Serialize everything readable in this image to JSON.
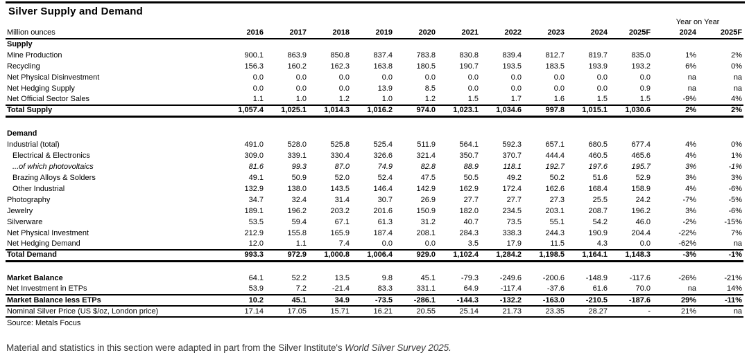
{
  "title": "Silver Supply and Demand",
  "source": "Source: Metals Focus",
  "footer": {
    "text": "Material and statistics in this section were adapted in part from the Silver Institute's ",
    "italic": "World Silver Survey 2025."
  },
  "table": {
    "unit_label": "Million ounces",
    "yoy_header": "Year on Year",
    "year_columns": [
      "2016",
      "2017",
      "2018",
      "2019",
      "2020",
      "2021",
      "2022",
      "2023",
      "2024",
      "2025F"
    ],
    "yoy_columns": [
      "2024",
      "2025F"
    ],
    "sections": [
      {
        "name": "supply",
        "rows": [
          {
            "label": "Supply",
            "cls": "section",
            "values": []
          },
          {
            "label": "Mine Production",
            "cls": "",
            "values": [
              "900.1",
              "863.9",
              "850.8",
              "837.4",
              "783.8",
              "830.8",
              "839.4",
              "812.7",
              "819.7",
              "835.0",
              "1%",
              "2%"
            ]
          },
          {
            "label": "Recycling",
            "cls": "",
            "values": [
              "156.3",
              "160.2",
              "162.3",
              "163.8",
              "180.5",
              "190.7",
              "193.5",
              "183.5",
              "193.9",
              "193.2",
              "6%",
              "0%"
            ]
          },
          {
            "label": "Net Physical Disinvestment",
            "cls": "",
            "values": [
              "0.0",
              "0.0",
              "0.0",
              "0.0",
              "0.0",
              "0.0",
              "0.0",
              "0.0",
              "0.0",
              "0.0",
              "na",
              "na"
            ]
          },
          {
            "label": "Net Hedging Supply",
            "cls": "",
            "values": [
              "0.0",
              "0.0",
              "0.0",
              "13.9",
              "8.5",
              "0.0",
              "0.0",
              "0.0",
              "0.0",
              "0.9",
              "na",
              "na"
            ]
          },
          {
            "label": "Net Official Sector Sales",
            "cls": "",
            "values": [
              "1.1",
              "1.0",
              "1.2",
              "1.0",
              "1.2",
              "1.5",
              "1.7",
              "1.6",
              "1.5",
              "1.5",
              "-9%",
              "4%"
            ]
          },
          {
            "label": "Total Supply",
            "cls": "total",
            "values": [
              "1,057.4",
              "1,025.1",
              "1,014.3",
              "1,016.2",
              "974.0",
              "1,023.1",
              "1,034.6",
              "997.8",
              "1,015.1",
              "1,030.6",
              "2%",
              "2%"
            ]
          }
        ]
      },
      {
        "name": "demand",
        "rows": [
          {
            "label": "Demand",
            "cls": "section",
            "values": []
          },
          {
            "label": "Industrial (total)",
            "cls": "",
            "values": [
              "491.0",
              "528.0",
              "525.8",
              "525.4",
              "511.9",
              "564.1",
              "592.3",
              "657.1",
              "680.5",
              "677.4",
              "4%",
              "0%"
            ]
          },
          {
            "label": "Electrical & Electronics",
            "cls": "indent",
            "values": [
              "309.0",
              "339.1",
              "330.4",
              "326.6",
              "321.4",
              "350.7",
              "370.7",
              "444.4",
              "460.5",
              "465.6",
              "4%",
              "1%"
            ]
          },
          {
            "label": "...of which photovoltaics",
            "cls": "indent italic",
            "values": [
              "81.6",
              "99.3",
              "87.0",
              "74.9",
              "82.8",
              "88.9",
              "118.1",
              "192.7",
              "197.6",
              "195.7",
              "3%",
              "-1%"
            ]
          },
          {
            "label": "Brazing Alloys & Solders",
            "cls": "indent",
            "values": [
              "49.1",
              "50.9",
              "52.0",
              "52.4",
              "47.5",
              "50.5",
              "49.2",
              "50.2",
              "51.6",
              "52.9",
              "3%",
              "3%"
            ]
          },
          {
            "label": "Other Industrial",
            "cls": "indent",
            "values": [
              "132.9",
              "138.0",
              "143.5",
              "146.4",
              "142.9",
              "162.9",
              "172.4",
              "162.6",
              "168.4",
              "158.9",
              "4%",
              "-6%"
            ]
          },
          {
            "label": "Photography",
            "cls": "",
            "values": [
              "34.7",
              "32.4",
              "31.4",
              "30.7",
              "26.9",
              "27.7",
              "27.7",
              "27.3",
              "25.5",
              "24.2",
              "-7%",
              "-5%"
            ]
          },
          {
            "label": "Jewelry",
            "cls": "",
            "values": [
              "189.1",
              "196.2",
              "203.2",
              "201.6",
              "150.9",
              "182.0",
              "234.5",
              "203.1",
              "208.7",
              "196.2",
              "3%",
              "-6%"
            ]
          },
          {
            "label": "Silverware",
            "cls": "",
            "values": [
              "53.5",
              "59.4",
              "67.1",
              "61.3",
              "31.2",
              "40.7",
              "73.5",
              "55.1",
              "54.2",
              "46.0",
              "-2%",
              "-15%"
            ]
          },
          {
            "label": "Net Physical Investment",
            "cls": "",
            "values": [
              "212.9",
              "155.8",
              "165.9",
              "187.4",
              "208.1",
              "284.3",
              "338.3",
              "244.3",
              "190.9",
              "204.4",
              "-22%",
              "7%"
            ]
          },
          {
            "label": "Net Hedging Demand",
            "cls": "",
            "values": [
              "12.0",
              "1.1",
              "7.4",
              "0.0",
              "0.0",
              "3.5",
              "17.9",
              "11.5",
              "4.3",
              "0.0",
              "-62%",
              "na"
            ]
          },
          {
            "label": "Total Demand",
            "cls": "total",
            "values": [
              "993.3",
              "972.9",
              "1,000.8",
              "1,006.4",
              "929.0",
              "1,102.4",
              "1,284.2",
              "1,198.5",
              "1,164.1",
              "1,148.3",
              "-3%",
              "-1%"
            ]
          }
        ]
      },
      {
        "name": "balance",
        "rows": [
          {
            "label": "Market Balance",
            "cls": "boldlabel",
            "values": [
              "64.1",
              "52.2",
              "13.5",
              "9.8",
              "45.1",
              "-79.3",
              "-249.6",
              "-200.6",
              "-148.9",
              "-117.6",
              "-26%",
              "-21%"
            ]
          },
          {
            "label": "Net Investment in ETPs",
            "cls": "",
            "values": [
              "53.9",
              "7.2",
              "-21.4",
              "83.3",
              "331.1",
              "64.9",
              "-117.4",
              "-37.6",
              "61.6",
              "70.0",
              "na",
              "14%"
            ]
          },
          {
            "label": "Market Balance less ETPs",
            "cls": "ruleboth",
            "values": [
              "10.2",
              "45.1",
              "34.9",
              "-73.5",
              "-286.1",
              "-144.3",
              "-132.2",
              "-163.0",
              "-210.5",
              "-187.6",
              "29%",
              "-11%"
            ]
          },
          {
            "label": "Nominal Silver Price (US $/oz, London price)",
            "cls": "rulebottom",
            "values": [
              "17.14",
              "17.05",
              "15.71",
              "16.21",
              "20.55",
              "25.14",
              "21.73",
              "23.35",
              "28.27",
              "-",
              "21%",
              "na"
            ]
          }
        ]
      }
    ]
  }
}
